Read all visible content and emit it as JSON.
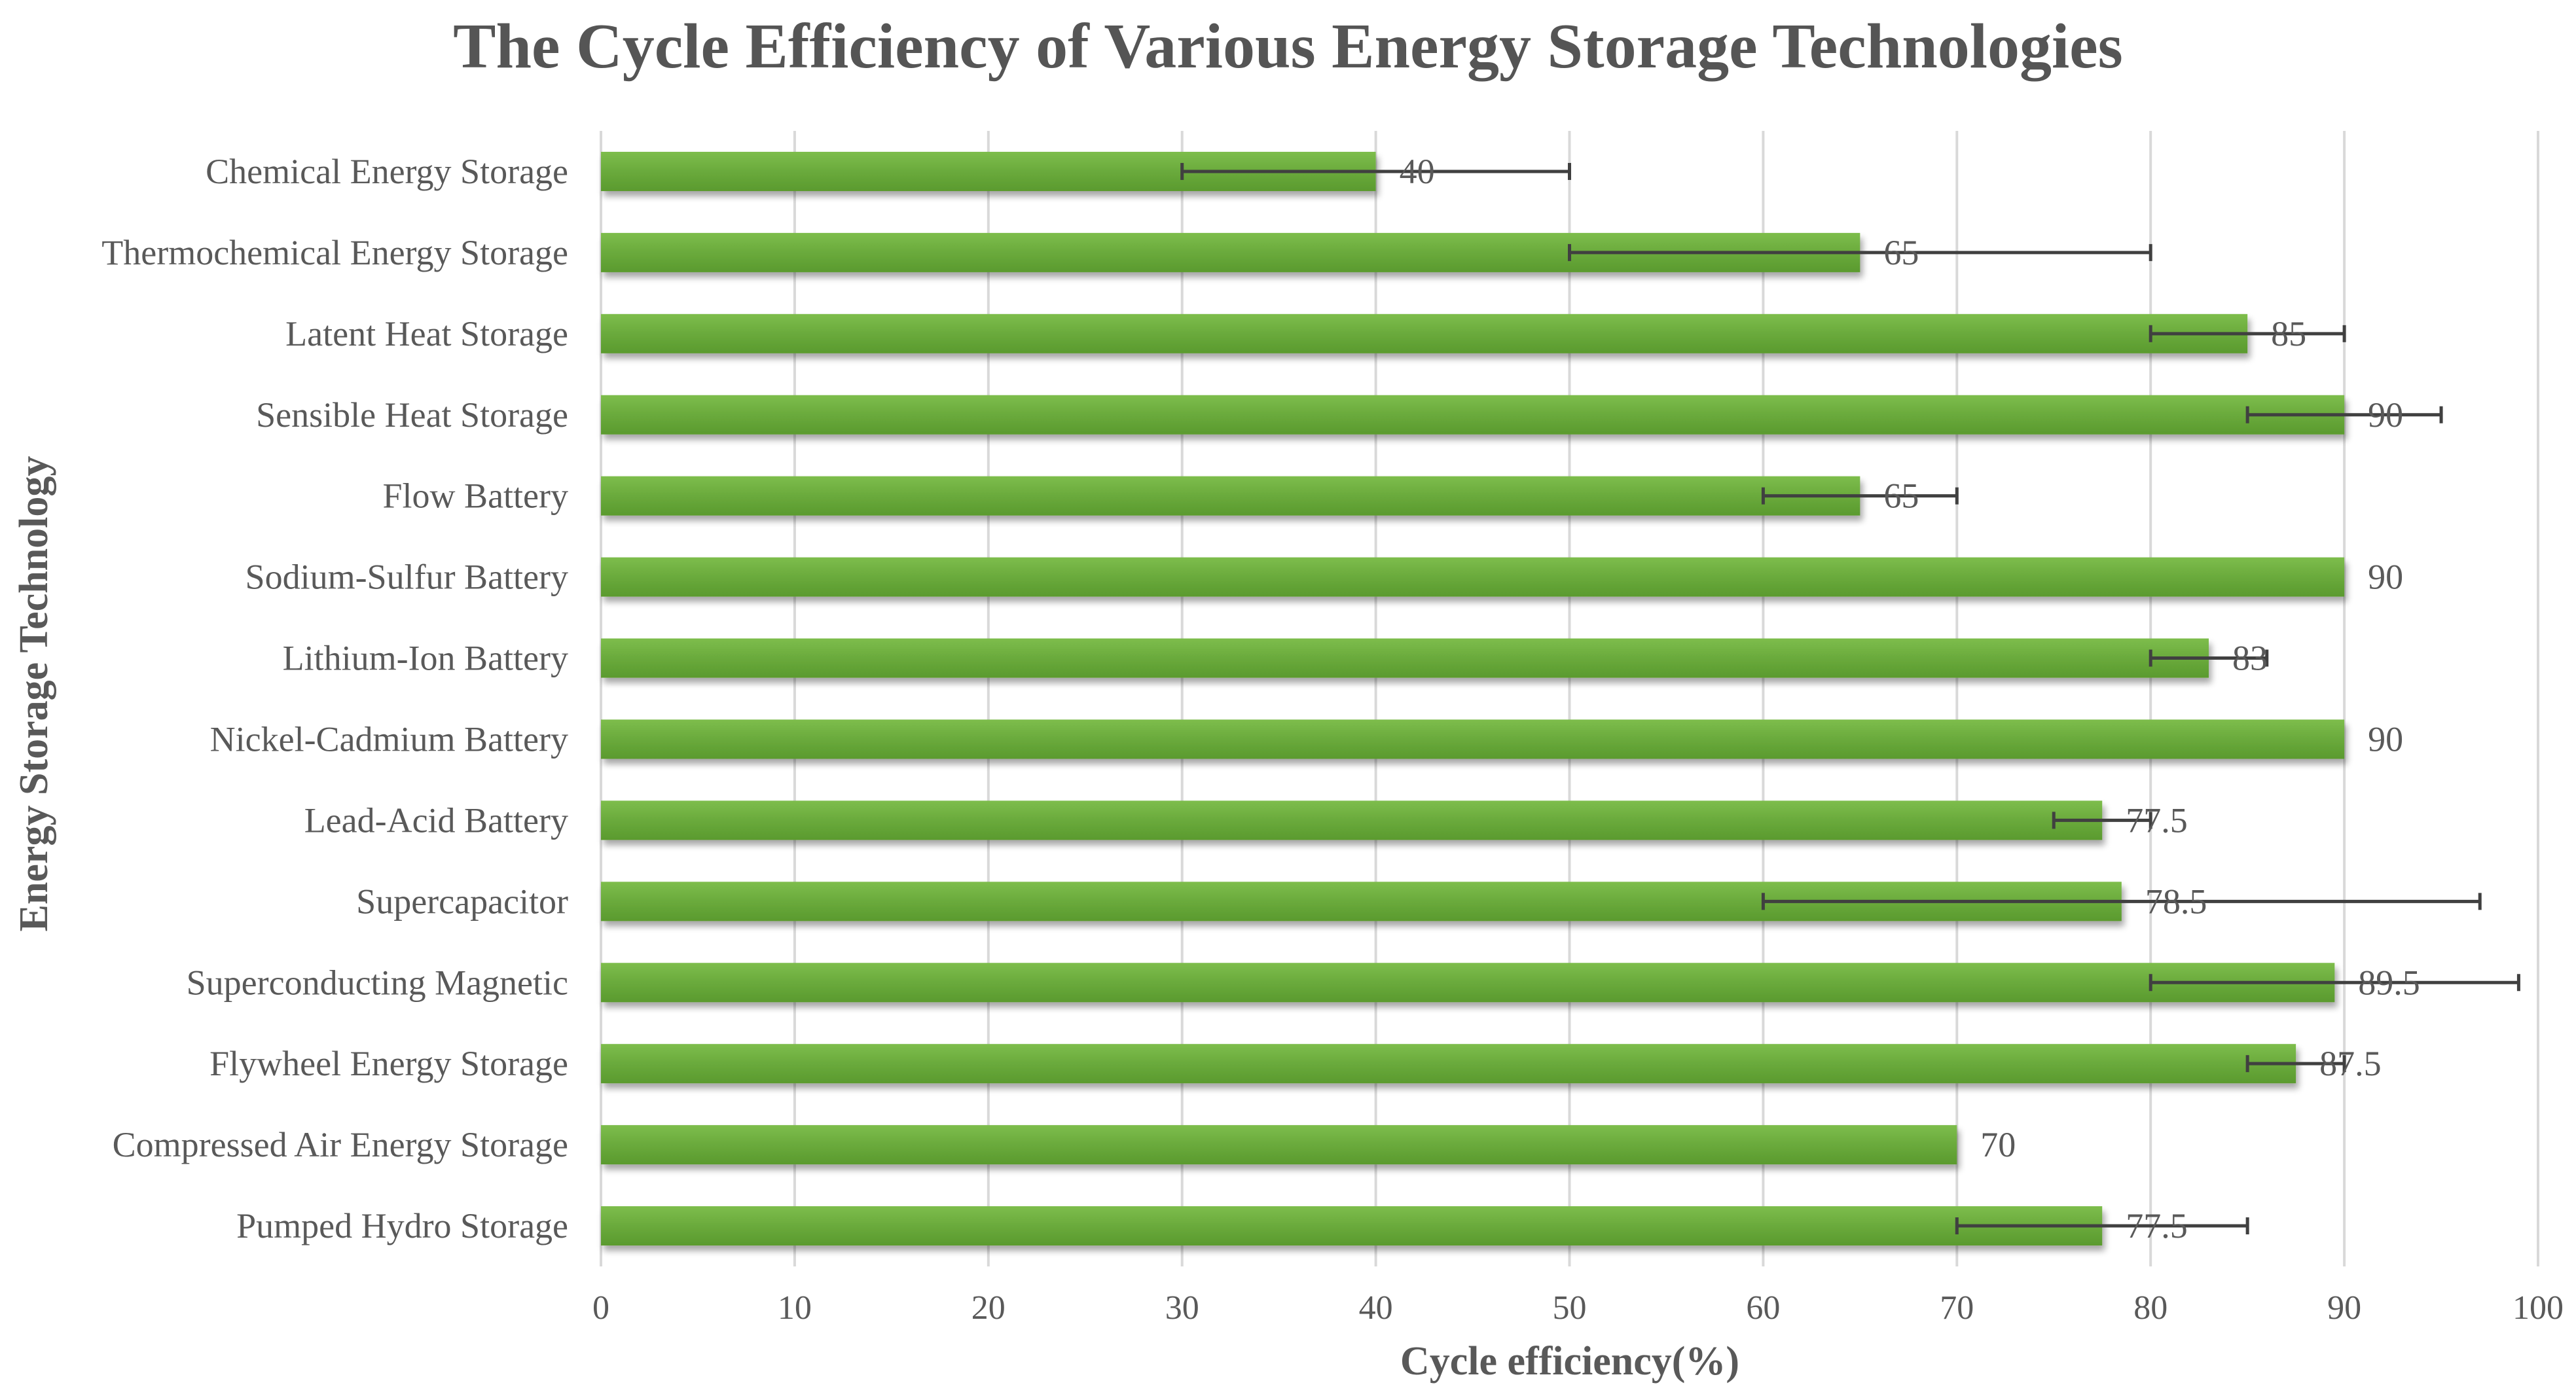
{
  "chart_data": {
    "type": "bar",
    "orientation": "horizontal",
    "title": "The Cycle Efficiency of Various Energy Storage Technologies",
    "xlabel": "Cycle efficiency(%)",
    "ylabel": "Energy Storage Technology",
    "xlim": [
      0,
      100
    ],
    "xticks": [
      0,
      10,
      20,
      30,
      40,
      50,
      60,
      70,
      80,
      90,
      100
    ],
    "grid": "vertical",
    "bar_color": "#6aaa3c",
    "bar_color_light": "#7dbd4c",
    "bar_color_dark": "#5a9a2e",
    "error_bar_color": "#404040",
    "text_color": "#595959",
    "grid_color": "#d9d9d9",
    "categories": [
      "Chemical Energy Storage",
      "Thermochemical Energy Storage",
      "Latent Heat Storage",
      "Sensible Heat Storage",
      "Flow Battery",
      "Sodium-Sulfur Battery",
      "Lithium-Ion Battery",
      "Nickel-Cadmium Battery",
      "Lead-Acid Battery",
      "Supercapacitor",
      "Superconducting Magnetic",
      "Flywheel Energy Storage",
      "Compressed Air Energy Storage",
      "Pumped Hydro Storage"
    ],
    "values": [
      40,
      65,
      85,
      90,
      65,
      90,
      83,
      90,
      77.5,
      78.5,
      89.5,
      87.5,
      70,
      77.5
    ],
    "value_labels": [
      "40",
      "65",
      "85",
      "90",
      "65",
      "90",
      "83",
      "90",
      "77.5",
      "78.5",
      "89.5",
      "87.5",
      "70",
      "77.5"
    ],
    "error_low": [
      30,
      50,
      80,
      85,
      60,
      null,
      80,
      null,
      75,
      60,
      80,
      85,
      null,
      70
    ],
    "error_high": [
      50,
      80,
      90,
      95,
      70,
      null,
      86,
      null,
      80,
      97,
      99,
      90,
      null,
      85
    ]
  }
}
